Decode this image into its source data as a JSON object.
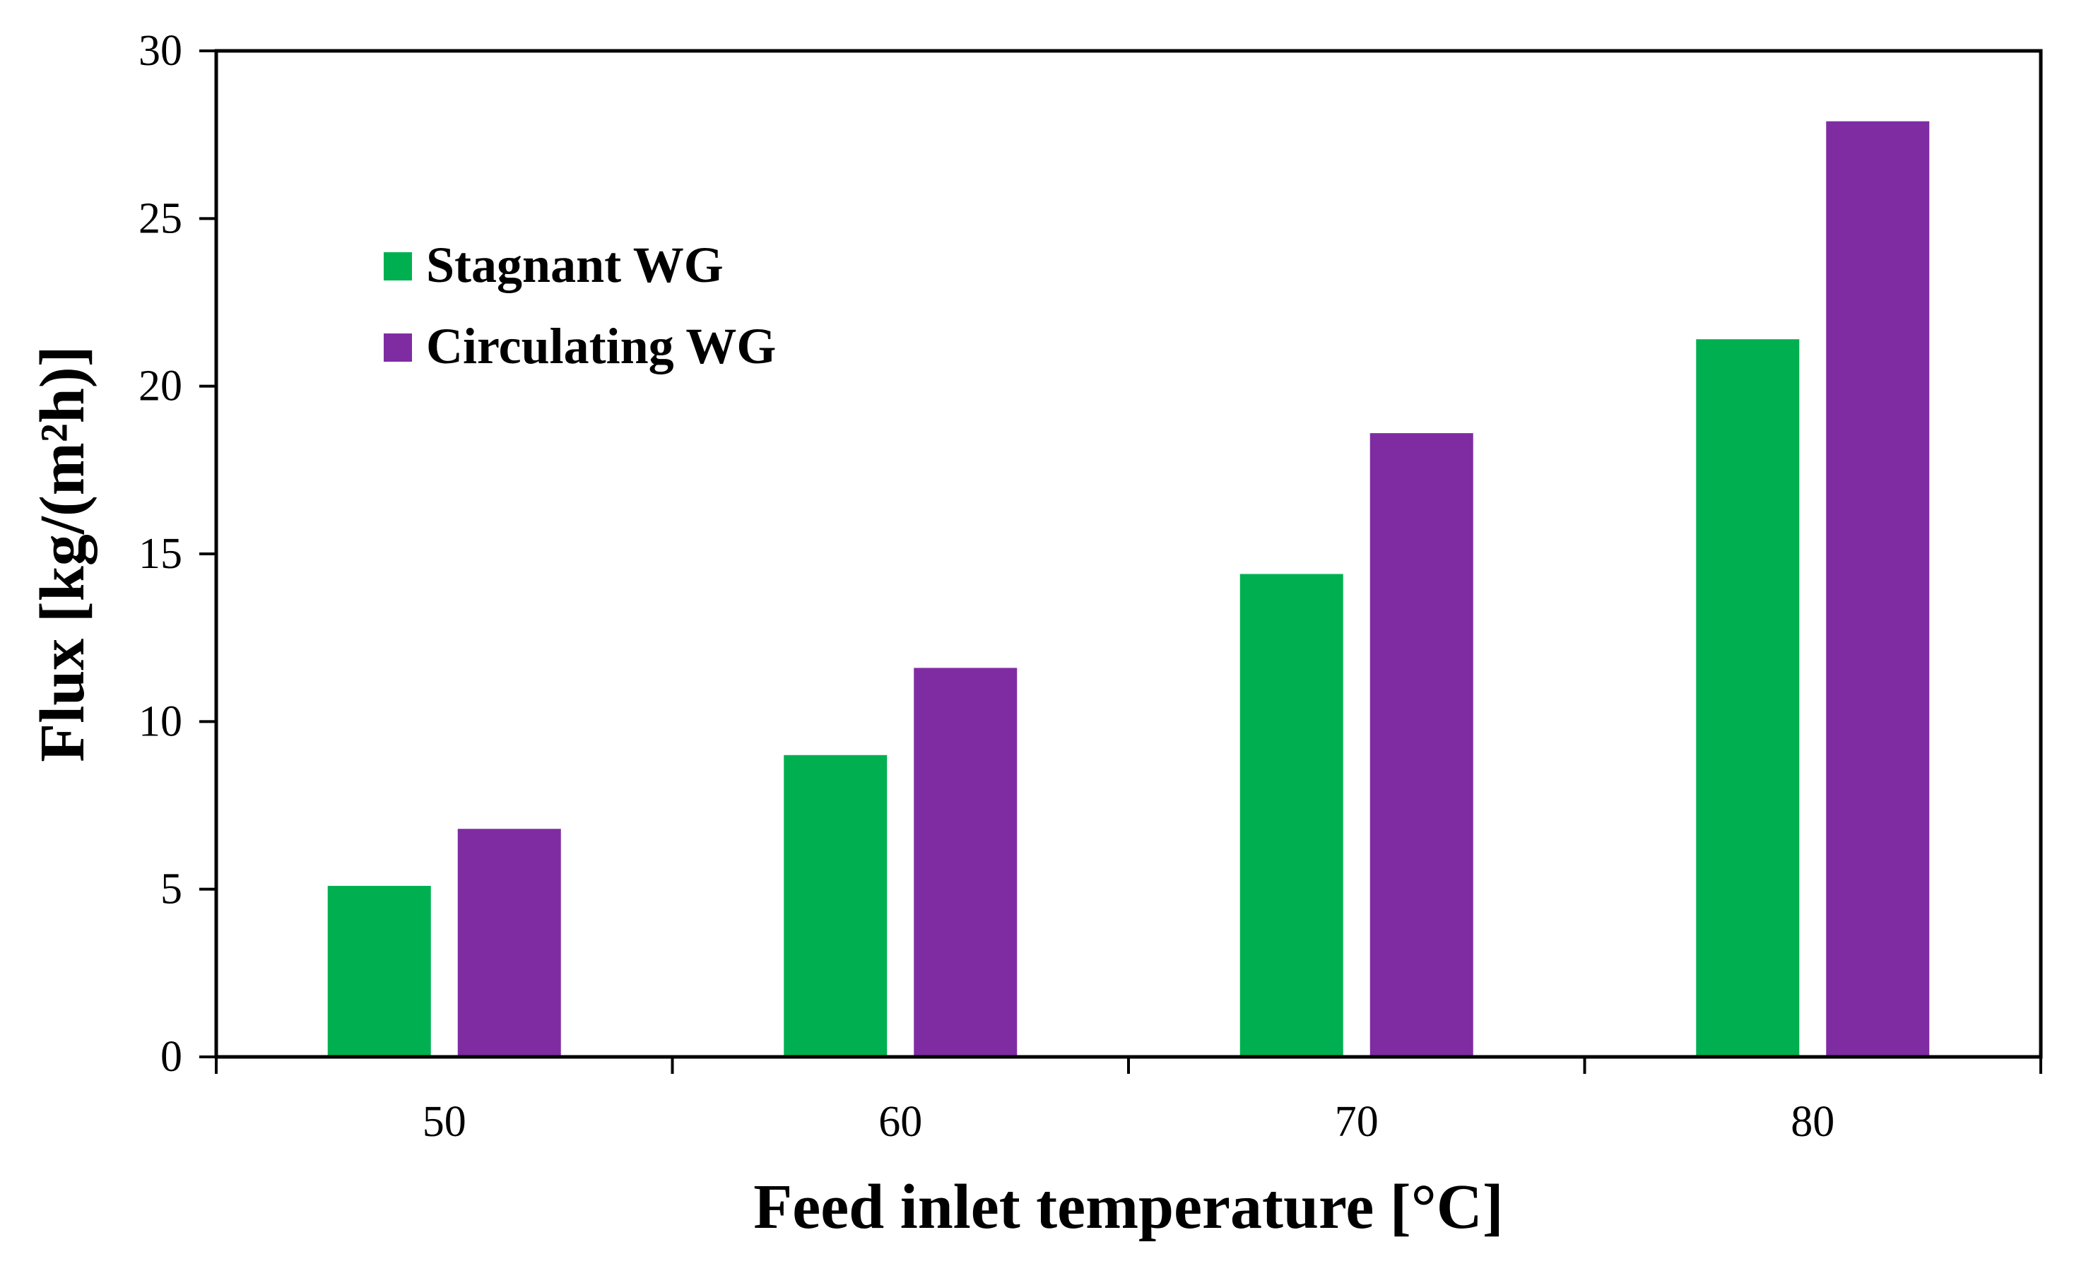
{
  "chart_data": {
    "type": "bar",
    "title": "",
    "xlabel": "Feed inlet temperature [°C]",
    "ylabel": "Flux [kg/(m²h)]",
    "categories": [
      "50",
      "60",
      "70",
      "80"
    ],
    "series": [
      {
        "name": "Stagnant WG",
        "color": "#00b050",
        "values": [
          5.1,
          9.0,
          14.4,
          21.4
        ]
      },
      {
        "name": "Circulating WG",
        "color": "#7f2ca3",
        "values": [
          6.8,
          11.6,
          18.6,
          27.9
        ]
      }
    ],
    "ylim": [
      0,
      30
    ],
    "yticks": [
      0,
      5,
      10,
      15,
      20,
      25,
      30
    ],
    "ytick_labels": [
      "0",
      "5",
      "10",
      "15",
      "20",
      "25",
      "30"
    ],
    "grid": false,
    "legend_position": "top-left"
  }
}
